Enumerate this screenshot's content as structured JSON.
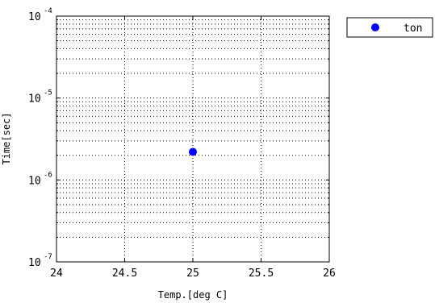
{
  "chart_data": {
    "type": "scatter",
    "title": "",
    "xlabel": "Temp.[deg C]",
    "ylabel": "Time[sec]",
    "xlim": [
      24,
      26
    ],
    "ylim": [
      1e-07,
      0.0001
    ],
    "yscale": "log",
    "grid": true,
    "legend_position": "outside-top-right",
    "x_ticks": [
      "24",
      "24.5",
      "25",
      "25.5",
      "26"
    ],
    "y_ticks": [
      {
        "base": "10",
        "exp": "-7"
      },
      {
        "base": "10",
        "exp": "-6"
      },
      {
        "base": "10",
        "exp": "-5"
      },
      {
        "base": "10",
        "exp": "-4"
      }
    ],
    "series": [
      {
        "name": "ton",
        "color": "#0000ff",
        "marker": "circle",
        "points": [
          {
            "x": 25,
            "y": 2.2e-06
          }
        ]
      }
    ]
  }
}
